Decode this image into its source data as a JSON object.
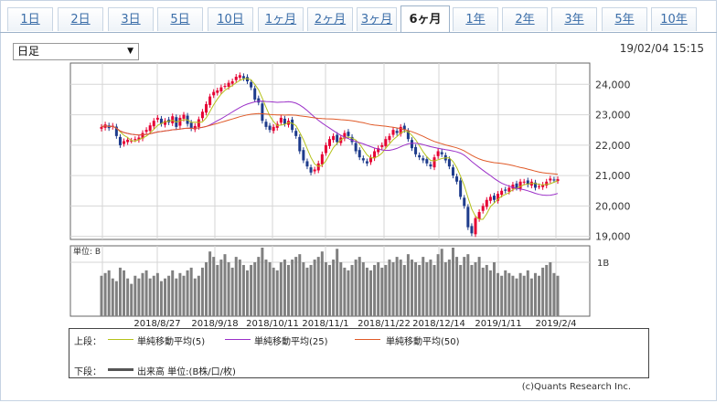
{
  "tabs": {
    "items": [
      "1日",
      "2日",
      "3日",
      "5日",
      "10日",
      "1ヶ月",
      "2ヶ月",
      "3ヶ月",
      "6ヶ月",
      "1年",
      "2年",
      "3年",
      "5年",
      "10年"
    ],
    "active": "6ヶ月"
  },
  "period_select": {
    "value": "日足"
  },
  "datetime": "19/02/04 15:15",
  "legend": {
    "upper_label": "上段：",
    "lower_label": "下段：",
    "ma5": "単純移動平均(5)",
    "ma25": "単純移動平均(25)",
    "ma50": "単純移動平均(50)",
    "volume": "出来高 単位:(B株/口/枚)"
  },
  "copyright": "(c)Quants Research Inc.",
  "colors": {
    "up": "#e60033",
    "down": "#1e3c8c",
    "ma5": "#b5c21a",
    "ma25": "#9b30c8",
    "ma50": "#e05a28",
    "volume": "#808080"
  },
  "chart_data": {
    "type": "candlestick",
    "y_ticks": [
      "24,000",
      "23,000",
      "22,000",
      "21,000",
      "20,000",
      "19,000"
    ],
    "y_tick_values": [
      24000,
      23000,
      22000,
      21000,
      20000,
      19000
    ],
    "ylim": [
      18900,
      24700
    ],
    "x_labels": [
      "2018/8/27",
      "2018/9/18",
      "2018/10/11",
      "2018/11/1",
      "2018/11/22",
      "2018/12/14",
      "2019/1/11",
      "2019/2/4"
    ],
    "volume_unit_label": "単位: B",
    "volume_tick": "1B",
    "volume_max": 1.4,
    "close": [
      22600,
      22680,
      22560,
      22640,
      22300,
      22000,
      22130,
      22180,
      22150,
      22200,
      22250,
      22400,
      22500,
      22650,
      22800,
      22900,
      22700,
      22800,
      22750,
      22950,
      22600,
      22900,
      23000,
      22700,
      22550,
      22630,
      22850,
      23100,
      23350,
      23600,
      23750,
      23800,
      23900,
      23950,
      24050,
      24100,
      24250,
      24300,
      24200,
      24100,
      23900,
      23500,
      23400,
      22800,
      22600,
      22500,
      22600,
      22700,
      22900,
      22700,
      22800,
      22500,
      22300,
      21800,
      21500,
      21300,
      21100,
      21200,
      21400,
      21700,
      22000,
      22200,
      22300,
      22100,
      22250,
      22400,
      22300,
      22100,
      21800,
      21600,
      21500,
      21400,
      21600,
      21800,
      21900,
      22000,
      22200,
      22300,
      22500,
      22400,
      22600,
      22500,
      22200,
      21900,
      21700,
      21600,
      21500,
      21400,
      21300,
      21600,
      21800,
      21700,
      21500,
      21300,
      21000,
      20800,
      20300,
      20000,
      19300,
      19100,
      19600,
      19800,
      20000,
      20200,
      20300,
      20200,
      20400,
      20500,
      20500,
      20600,
      20700,
      20600,
      20800,
      20800,
      20700,
      20800,
      20600,
      20650,
      20700,
      20800,
      20900,
      20850,
      20880
    ],
    "volume": [
      0.75,
      0.8,
      0.85,
      0.7,
      0.65,
      0.9,
      0.85,
      0.7,
      0.6,
      0.75,
      0.7,
      0.8,
      0.85,
      0.7,
      0.75,
      0.8,
      0.65,
      0.7,
      0.75,
      0.85,
      0.7,
      0.8,
      0.75,
      0.85,
      0.9,
      0.7,
      0.75,
      0.9,
      1.0,
      1.2,
      1.1,
      0.95,
      1.05,
      1.15,
      1.0,
      0.9,
      1.1,
      1.05,
      0.95,
      0.85,
      0.95,
      1.0,
      1.1,
      1.35,
      1.05,
      1.0,
      0.9,
      0.85,
      1.0,
      1.05,
      0.95,
      1.05,
      1.1,
      1.15,
      1.0,
      0.9,
      0.95,
      1.05,
      1.1,
      1.2,
      1.0,
      0.95,
      1.05,
      1.25,
      1.0,
      0.9,
      0.85,
      0.95,
      1.05,
      1.1,
      1.0,
      0.9,
      0.85,
      0.95,
      1.0,
      0.9,
      0.95,
      1.05,
      1.0,
      1.1,
      1.05,
      0.95,
      1.15,
      1.05,
      1.0,
      0.95,
      1.1,
      1.0,
      1.05,
      0.95,
      1.15,
      1.25,
      1.0,
      1.05,
      1.3,
      1.1,
      0.95,
      1.1,
      1.15,
      0.95,
      1.0,
      1.1,
      0.9,
      0.95,
      0.85,
      1.0,
      0.8,
      0.75,
      0.85,
      0.8,
      0.75,
      0.7,
      0.8,
      0.75,
      0.85,
      0.7,
      0.8,
      0.75,
      0.9,
      0.95,
      1.0,
      0.8,
      0.75
    ]
  }
}
